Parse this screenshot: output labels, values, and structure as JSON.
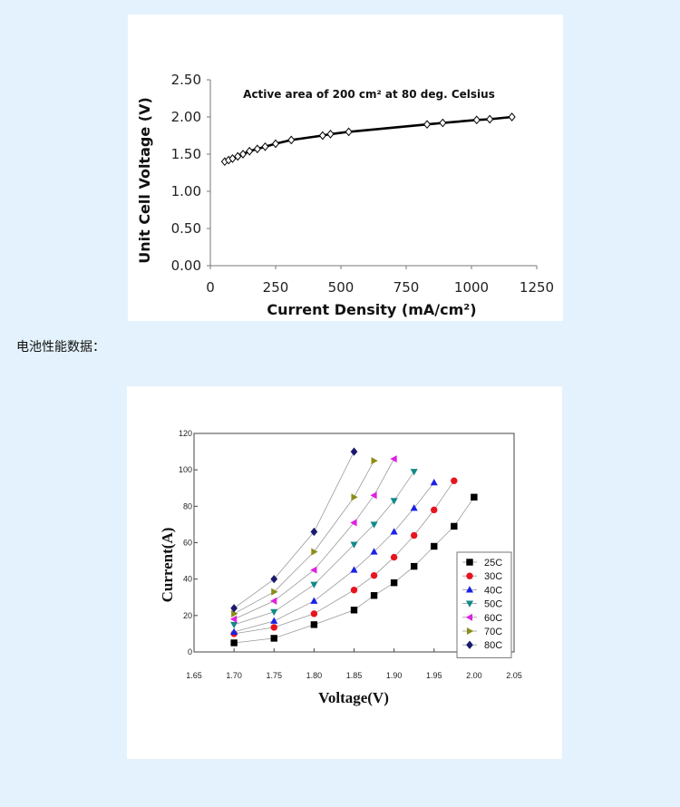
{
  "caption": "电池性能数据：",
  "chart_data": [
    {
      "type": "line",
      "title": "Active area of 200 cm² at 80 deg. Celsius",
      "xlabel": "Current Density (mA/cm²)",
      "ylabel": "Unit Cell Voltage  (V)",
      "xlim": [
        0,
        1250
      ],
      "ylim": [
        0,
        2.5
      ],
      "x_ticks": [
        "0",
        "250",
        "500",
        "750",
        "1000",
        "1250"
      ],
      "y_ticks": [
        "0.00",
        "0.50",
        "1.00",
        "1.50",
        "2.00",
        "2.50"
      ],
      "grid": false,
      "series": [
        {
          "marker": "diamond-open",
          "color": "#000000",
          "points": [
            [
              55,
              1.4
            ],
            [
              70,
              1.42
            ],
            [
              85,
              1.44
            ],
            [
              105,
              1.47
            ],
            [
              125,
              1.5
            ],
            [
              150,
              1.54
            ],
            [
              180,
              1.57
            ],
            [
              210,
              1.6
            ],
            [
              250,
              1.64
            ],
            [
              310,
              1.69
            ],
            [
              430,
              1.75
            ],
            [
              460,
              1.77
            ],
            [
              530,
              1.8
            ],
            [
              830,
              1.9
            ],
            [
              890,
              1.92
            ],
            [
              1020,
              1.96
            ],
            [
              1070,
              1.97
            ],
            [
              1155,
              2.0
            ]
          ]
        }
      ]
    },
    {
      "type": "line",
      "title": "",
      "xlabel": "Voltage(V)",
      "ylabel": "Current(A)",
      "xlim": [
        1.65,
        2.05
      ],
      "ylim": [
        0,
        120
      ],
      "x_ticks": [
        "1.65",
        "1.70",
        "1.75",
        "1.80",
        "1.85",
        "1.90",
        "1.95",
        "2.00",
        "2.05"
      ],
      "y_ticks": [
        "0",
        "20",
        "40",
        "60",
        "80",
        "100",
        "120"
      ],
      "grid": false,
      "legend_position": "bottom-right",
      "series": [
        {
          "name": "25C",
          "color": "#000000",
          "marker": "square",
          "x": [
            1.7,
            1.75,
            1.8,
            1.85,
            1.875,
            1.9,
            1.925,
            1.95,
            1.975,
            2.0
          ],
          "y": [
            5,
            7.5,
            15,
            23,
            31,
            38,
            47,
            58,
            69,
            85
          ]
        },
        {
          "name": "30C",
          "color": "#e8141e",
          "marker": "circle",
          "x": [
            1.7,
            1.75,
            1.8,
            1.85,
            1.875,
            1.9,
            1.925,
            1.95,
            1.975
          ],
          "y": [
            10,
            13.5,
            21,
            34,
            42,
            52,
            64,
            78,
            94
          ]
        },
        {
          "name": "40C",
          "color": "#1a22e6",
          "marker": "triangle-up",
          "x": [
            1.7,
            1.75,
            1.8,
            1.85,
            1.875,
            1.9,
            1.925,
            1.95
          ],
          "y": [
            11,
            17,
            28,
            45,
            55,
            66,
            79,
            93
          ]
        },
        {
          "name": "50C",
          "color": "#138a8a",
          "marker": "triangle-down",
          "x": [
            1.7,
            1.75,
            1.8,
            1.85,
            1.875,
            1.9,
            1.925
          ],
          "y": [
            15,
            22,
            37,
            59,
            70,
            83,
            99
          ]
        },
        {
          "name": "60C",
          "color": "#e020e0",
          "marker": "triangle-left",
          "x": [
            1.7,
            1.75,
            1.8,
            1.85,
            1.875,
            1.9
          ],
          "y": [
            18,
            28,
            45,
            71,
            86,
            106
          ]
        },
        {
          "name": "70C",
          "color": "#8c8c1a",
          "marker": "triangle-right",
          "x": [
            1.7,
            1.75,
            1.8,
            1.85,
            1.875
          ],
          "y": [
            21,
            33,
            55,
            85,
            105
          ]
        },
        {
          "name": "80C",
          "color": "#1a1a6e",
          "marker": "diamond",
          "x": [
            1.7,
            1.75,
            1.8,
            1.85
          ],
          "y": [
            24,
            40,
            66,
            110
          ]
        }
      ]
    }
  ]
}
